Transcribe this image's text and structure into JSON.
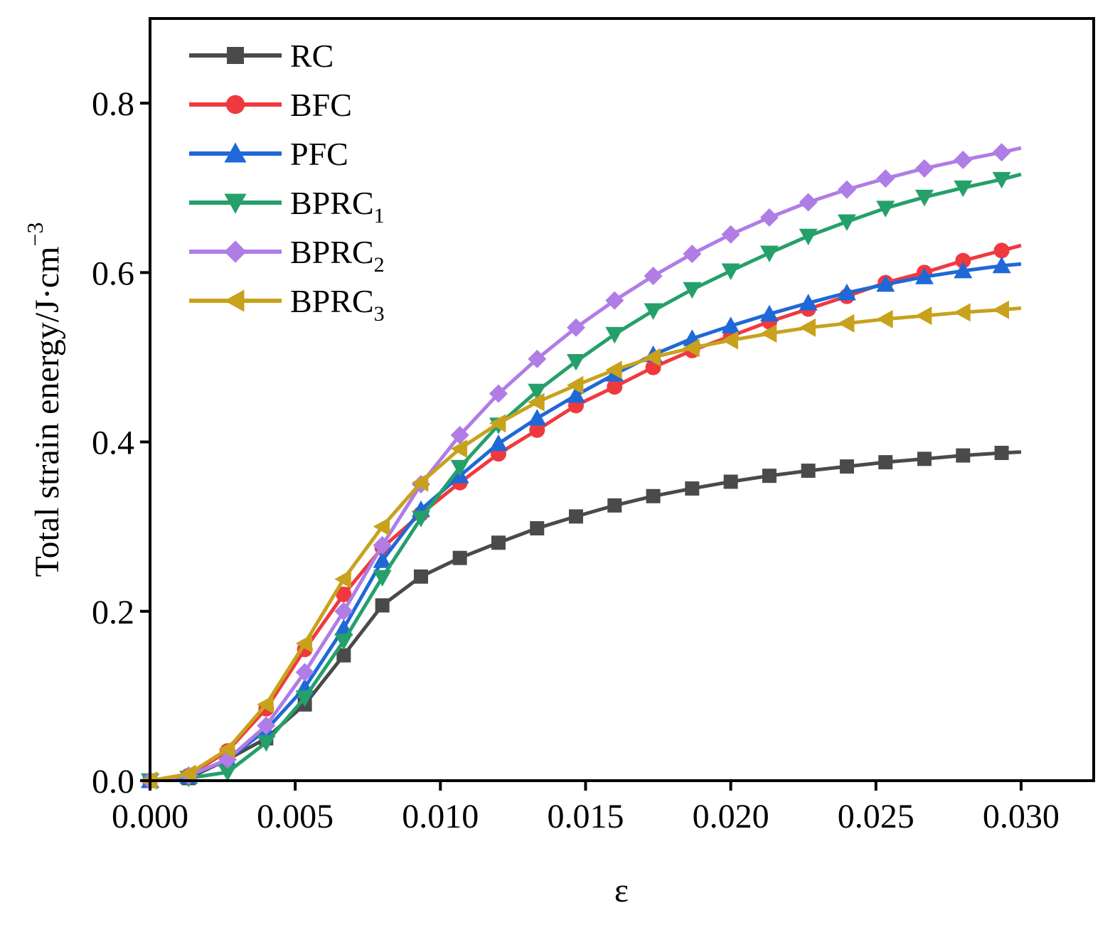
{
  "chart_data": {
    "type": "line",
    "title": "",
    "xlabel": "ε",
    "ylabel": {
      "base": "Total strain energy/J·cm",
      "sup": "−3"
    },
    "xlim": [
      0.0,
      0.0325
    ],
    "ylim": [
      0.0,
      0.9
    ],
    "xticks": [
      0.0,
      0.005,
      0.01,
      0.015,
      0.02,
      0.025,
      0.03
    ],
    "xtick_labels": [
      "0.000",
      "0.005",
      "0.010",
      "0.015",
      "0.020",
      "0.025",
      "0.030"
    ],
    "yticks": [
      0.0,
      0.2,
      0.4,
      0.6,
      0.8
    ],
    "ytick_labels": [
      "0.0",
      "0.2",
      "0.4",
      "0.6",
      "0.8"
    ],
    "grid": false,
    "legend_position": "top-left",
    "x": [
      0.0,
      0.00133,
      0.00267,
      0.004,
      0.00533,
      0.00667,
      0.008,
      0.00933,
      0.01067,
      0.012,
      0.01333,
      0.01467,
      0.016,
      0.01733,
      0.01867,
      0.02,
      0.02133,
      0.02267,
      0.024,
      0.02533,
      0.02667,
      0.028,
      0.02933,
      0.03
    ],
    "series": [
      {
        "name": "RC",
        "sub": "",
        "color": "#4a4a4a",
        "marker": "square",
        "values": [
          0.0,
          0.003,
          0.025,
          0.05,
          0.09,
          0.148,
          0.207,
          0.241,
          0.263,
          0.281,
          0.298,
          0.312,
          0.325,
          0.336,
          0.345,
          0.353,
          0.36,
          0.366,
          0.371,
          0.376,
          0.38,
          0.384,
          0.387,
          0.388
        ]
      },
      {
        "name": "BFC",
        "sub": "",
        "color": "#f0393e",
        "marker": "circle",
        "values": [
          0.0,
          0.006,
          0.035,
          0.085,
          0.155,
          0.22,
          0.275,
          0.315,
          0.352,
          0.386,
          0.414,
          0.443,
          0.465,
          0.488,
          0.508,
          0.525,
          0.542,
          0.557,
          0.572,
          0.588,
          0.6,
          0.614,
          0.626,
          0.632
        ]
      },
      {
        "name": "PFC",
        "sub": "",
        "color": "#1f68d7",
        "marker": "triangle-up",
        "values": [
          0.0,
          0.005,
          0.025,
          0.06,
          0.11,
          0.18,
          0.26,
          0.32,
          0.36,
          0.398,
          0.428,
          0.455,
          0.48,
          0.503,
          0.522,
          0.537,
          0.551,
          0.564,
          0.576,
          0.586,
          0.595,
          0.602,
          0.608,
          0.61
        ]
      },
      {
        "name": "BPRC",
        "sub": "1",
        "color": "#25a06a",
        "marker": "triangle-down",
        "values": [
          0.0,
          0.003,
          0.01,
          0.045,
          0.098,
          0.165,
          0.24,
          0.31,
          0.37,
          0.42,
          0.46,
          0.495,
          0.527,
          0.555,
          0.58,
          0.602,
          0.623,
          0.643,
          0.66,
          0.676,
          0.689,
          0.7,
          0.71,
          0.716
        ]
      },
      {
        "name": "BPRC",
        "sub": "2",
        "color": "#b07ce6",
        "marker": "diamond",
        "values": [
          0.0,
          0.006,
          0.025,
          0.065,
          0.128,
          0.2,
          0.278,
          0.35,
          0.408,
          0.457,
          0.498,
          0.535,
          0.567,
          0.596,
          0.622,
          0.645,
          0.665,
          0.683,
          0.698,
          0.711,
          0.723,
          0.733,
          0.742,
          0.747
        ]
      },
      {
        "name": "BPRC",
        "sub": "3",
        "color": "#c8a21c",
        "marker": "triangle-left",
        "values": [
          0.0,
          0.008,
          0.037,
          0.09,
          0.162,
          0.238,
          0.3,
          0.352,
          0.392,
          0.422,
          0.447,
          0.467,
          0.485,
          0.5,
          0.511,
          0.52,
          0.528,
          0.535,
          0.54,
          0.545,
          0.549,
          0.553,
          0.556,
          0.558
        ]
      }
    ]
  }
}
